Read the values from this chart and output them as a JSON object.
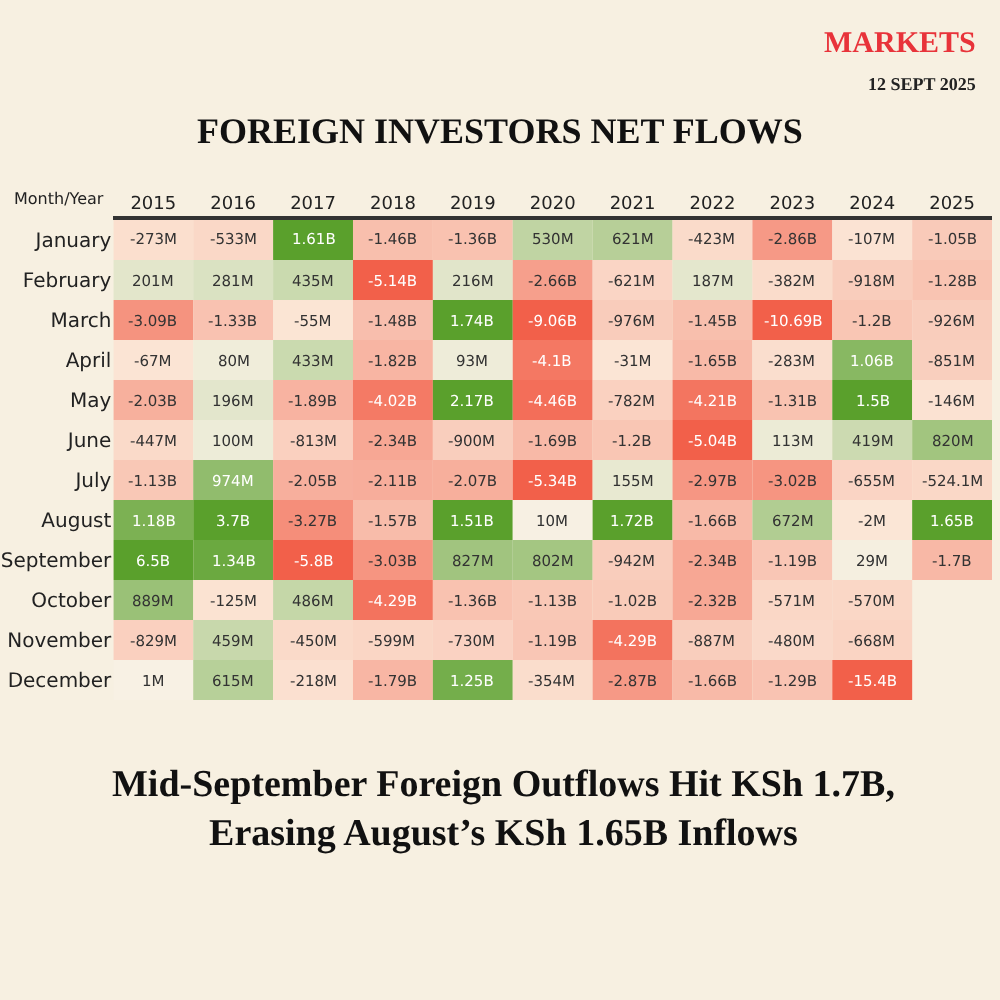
{
  "chart_data": {
    "type": "heatmap",
    "title": "FOREIGN INVESTORS NET FLOWS",
    "ylabel": "Month/Year",
    "annotations": [
      "MARKETS",
      "12 SEPT 2025",
      "Mid-September Foreign Outflows Hit KSh 1.7B,\nErasing August’s KSh 1.65B Inflows"
    ],
    "categories": [
      "2015",
      "2016",
      "2017",
      "2018",
      "2019",
      "2020",
      "2021",
      "2022",
      "2023",
      "2024",
      "2025"
    ],
    "y_categories": [
      "January",
      "February",
      "March",
      "April",
      "May",
      "June",
      "July",
      "August",
      "September",
      "October",
      "November",
      "December"
    ],
    "cells": [
      [
        -273000000.0,
        -533000000.0,
        1610000000.0,
        -1460000000.0,
        -1360000000.0,
        530000000.0,
        621000000.0,
        -423000000.0,
        -2860000000.0,
        -107000000.0,
        -1050000000.0
      ],
      [
        201000000.0,
        281000000.0,
        435000000.0,
        -5140000000.0,
        216000000.0,
        -2660000000.0,
        -621000000.0,
        187000000.0,
        -382000000.0,
        -918000000.0,
        -1280000000.0
      ],
      [
        -3090000000.0,
        -1330000000.0,
        -55000000.0,
        -1480000000.0,
        1740000000.0,
        -9060000000.0,
        -976000000.0,
        -1450000000.0,
        -10690000000.0,
        -1200000000.0,
        -926000000.0
      ],
      [
        -67000000.0,
        80000000.0,
        433000000.0,
        -1820000000.0,
        93000000.0,
        -4100000000.0,
        -31000000.0,
        -1650000000.0,
        -283000000.0,
        1060000000.0,
        -851000000.0
      ],
      [
        -2030000000.0,
        196000000.0,
        -1890000000.0,
        -4020000000.0,
        2170000000.0,
        -4460000000.0,
        -782000000.0,
        -4210000000.0,
        -1310000000.0,
        1500000000.0,
        -146000000.0
      ],
      [
        -447000000.0,
        100000000.0,
        -813000000.0,
        -2340000000.0,
        -900000000.0,
        -1690000000.0,
        -1200000000.0,
        -5040000000.0,
        113000000.0,
        419000000.0,
        820000000.0
      ],
      [
        -1130000000.0,
        974000000.0,
        -2050000000.0,
        -2110000000.0,
        -2070000000.0,
        -5340000000.0,
        155000000.0,
        -2970000000.0,
        -3020000000.0,
        -655000000.0,
        -524100000.0
      ],
      [
        1180000000.0,
        3700000000.0,
        -3270000000.0,
        -1570000000.0,
        1510000000.0,
        10000000.0,
        1720000000.0,
        -1660000000.0,
        672000000.0,
        -2000000.0,
        1650000000.0
      ],
      [
        6500000000.0,
        1340000000.0,
        -5800000000.0,
        -3030000000.0,
        827000000.0,
        802000000.0,
        -942000000.0,
        -2340000000.0,
        -1190000000.0,
        29000000.0,
        -1700000000.0
      ],
      [
        889000000.0,
        -125000000.0,
        486000000.0,
        -4290000000.0,
        -1360000000.0,
        -1130000000.0,
        -1020000000.0,
        -2320000000.0,
        -571000000.0,
        -570000000.0,
        null
      ],
      [
        -829000000.0,
        459000000.0,
        -450000000.0,
        -599000000.0,
        -730000000.0,
        -1190000000.0,
        -4290000000.0,
        -887000000.0,
        -480000000.0,
        -668000000.0,
        null
      ],
      [
        1000000.0,
        615000000.0,
        -218000000.0,
        -1790000000.0,
        1250000000.0,
        -354000000.0,
        -2870000000.0,
        -1660000000.0,
        -1290000000.0,
        -15400000000.0,
        null
      ]
    ],
    "cell_labels": [
      [
        "-273M",
        "-533M",
        "1.61B",
        "-1.46B",
        "-1.36B",
        "530M",
        "621M",
        "-423M",
        "-2.86B",
        "-107M",
        "-1.05B"
      ],
      [
        "201M",
        "281M",
        "435M",
        "-5.14B",
        "216M",
        "-2.66B",
        "-621M",
        "187M",
        "-382M",
        "-918M",
        "-1.28B"
      ],
      [
        "-3.09B",
        "-1.33B",
        "-55M",
        "-1.48B",
        "1.74B",
        "-9.06B",
        "-976M",
        "-1.45B",
        "-10.69B",
        "-1.2B",
        "-926M"
      ],
      [
        "-67M",
        "80M",
        "433M",
        "-1.82B",
        "93M",
        "-4.1B",
        "-31M",
        "-1.65B",
        "-283M",
        "1.06B",
        "-851M"
      ],
      [
        "-2.03B",
        "196M",
        "-1.89B",
        "-4.02B",
        "2.17B",
        "-4.46B",
        "-782M",
        "-4.21B",
        "-1.31B",
        "1.5B",
        "-146M"
      ],
      [
        "-447M",
        "100M",
        "-813M",
        "-2.34B",
        "-900M",
        "-1.69B",
        "-1.2B",
        "-5.04B",
        "113M",
        "419M",
        "820M"
      ],
      [
        "-1.13B",
        "974M",
        "-2.05B",
        "-2.11B",
        "-2.07B",
        "-5.34B",
        "155M",
        "-2.97B",
        "-3.02B",
        "-655M",
        "-524.1M"
      ],
      [
        "1.18B",
        "3.7B",
        "-3.27B",
        "-1.57B",
        "1.51B",
        "10M",
        "1.72B",
        "-1.66B",
        "672M",
        "-2M",
        "1.65B"
      ],
      [
        "6.5B",
        "1.34B",
        "-5.8B",
        "-3.03B",
        "827M",
        "802M",
        "-942M",
        "-2.34B",
        "-1.19B",
        "29M",
        "-1.7B"
      ],
      [
        "889M",
        "-125M",
        "486M",
        "-4.29B",
        "-1.36B",
        "-1.13B",
        "-1.02B",
        "-2.32B",
        "-571M",
        "-570M",
        null
      ],
      [
        "-829M",
        "459M",
        "-450M",
        "-599M",
        "-730M",
        "-1.19B",
        "-4.29B",
        "-887M",
        "-480M",
        "-668M",
        null
      ],
      [
        "1M",
        "615M",
        "-218M",
        "-1.79B",
        "1.25B",
        "-354M",
        "-2.87B",
        "-1.66B",
        "-1.29B",
        "-15.4B",
        null
      ]
    ]
  }
}
